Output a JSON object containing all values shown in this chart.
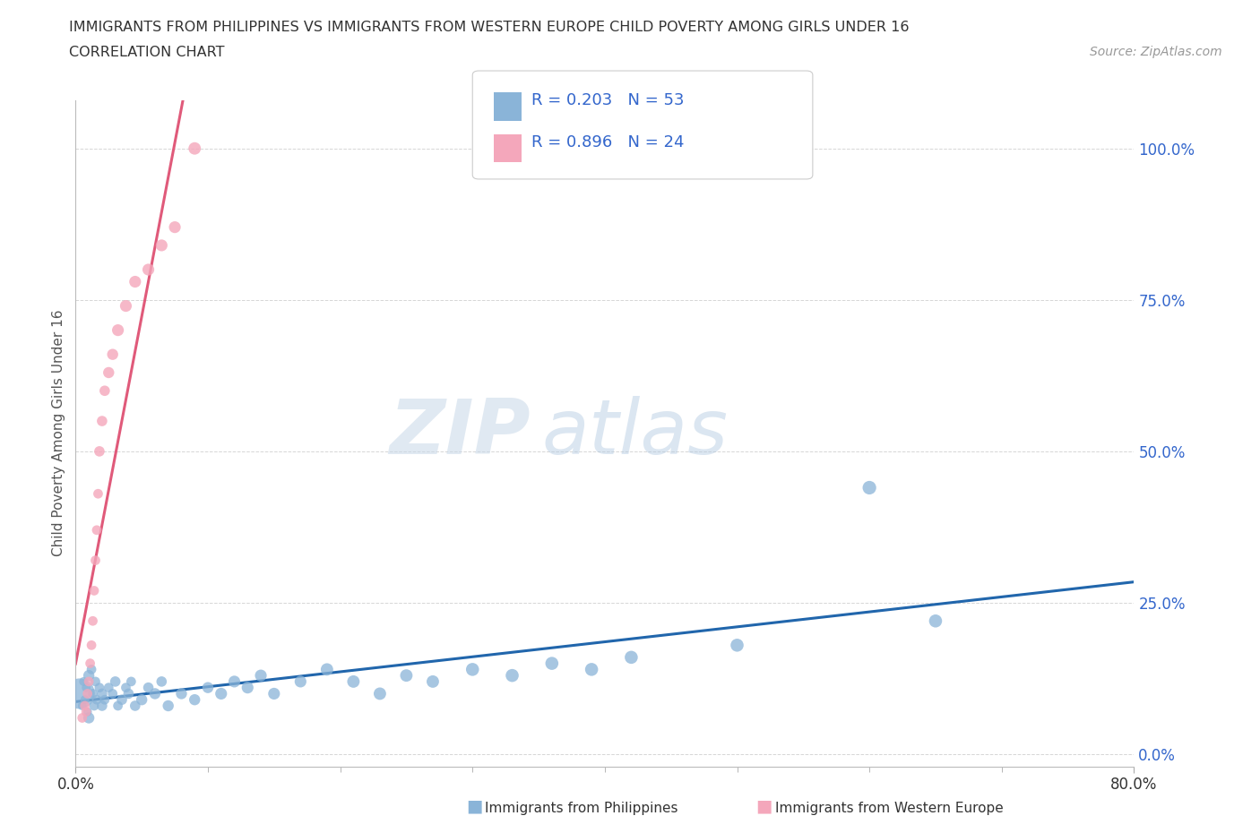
{
  "title_line1": "IMMIGRANTS FROM PHILIPPINES VS IMMIGRANTS FROM WESTERN EUROPE CHILD POVERTY AMONG GIRLS UNDER 16",
  "title_line2": "CORRELATION CHART",
  "source_text": "Source: ZipAtlas.com",
  "ylabel": "Child Poverty Among Girls Under 16",
  "xlim": [
    0.0,
    0.8
  ],
  "ylim": [
    -0.02,
    1.08
  ],
  "ytick_values": [
    0.0,
    0.25,
    0.5,
    0.75,
    1.0
  ],
  "ytick_labels": [
    "0.0%",
    "25.0%",
    "50.0%",
    "75.0%",
    "100.0%"
  ],
  "xtick_values": [
    0.0,
    0.8
  ],
  "xtick_labels": [
    "0.0%",
    "80.0%"
  ],
  "philippines_color": "#8ab4d8",
  "western_europe_color": "#f4a7bb",
  "phil_line_color": "#2166ac",
  "we_line_color": "#e05a7a",
  "legend_r1": "R = 0.203",
  "legend_n1": "N = 53",
  "legend_r2": "R = 0.896",
  "legend_n2": "N = 24",
  "legend_text_color": "#3366cc",
  "watermark_zip": "ZIP",
  "watermark_atlas": "atlas",
  "watermark_color": "#c8d8e8",
  "source_color": "#999999",
  "title_color": "#333333",
  "ylabel_color": "#555555",
  "ytick_color": "#3366cc",
  "xtick_color": "#333333",
  "grid_color": "#cccccc",
  "background_color": "#ffffff",
  "phil_x": [
    0.003,
    0.005,
    0.006,
    0.007,
    0.008,
    0.009,
    0.01,
    0.01,
    0.012,
    0.013,
    0.014,
    0.015,
    0.016,
    0.018,
    0.02,
    0.02,
    0.022,
    0.025,
    0.028,
    0.03,
    0.032,
    0.035,
    0.038,
    0.04,
    0.042,
    0.045,
    0.05,
    0.055,
    0.06,
    0.065,
    0.07,
    0.08,
    0.09,
    0.1,
    0.11,
    0.12,
    0.13,
    0.14,
    0.15,
    0.17,
    0.19,
    0.21,
    0.23,
    0.25,
    0.27,
    0.3,
    0.33,
    0.36,
    0.39,
    0.42,
    0.5,
    0.6,
    0.65
  ],
  "phil_y": [
    0.1,
    0.08,
    0.12,
    0.09,
    0.11,
    0.07,
    0.13,
    0.06,
    0.14,
    0.1,
    0.08,
    0.12,
    0.09,
    0.11,
    0.1,
    0.08,
    0.09,
    0.11,
    0.1,
    0.12,
    0.08,
    0.09,
    0.11,
    0.1,
    0.12,
    0.08,
    0.09,
    0.11,
    0.1,
    0.12,
    0.08,
    0.1,
    0.09,
    0.11,
    0.1,
    0.12,
    0.11,
    0.13,
    0.1,
    0.12,
    0.14,
    0.12,
    0.1,
    0.13,
    0.12,
    0.14,
    0.13,
    0.15,
    0.14,
    0.16,
    0.18,
    0.44,
    0.22
  ],
  "phil_sizes": [
    600,
    50,
    50,
    50,
    50,
    50,
    80,
    80,
    60,
    60,
    60,
    60,
    60,
    60,
    70,
    70,
    60,
    60,
    60,
    70,
    60,
    70,
    60,
    70,
    60,
    70,
    80,
    70,
    80,
    70,
    80,
    80,
    80,
    80,
    90,
    90,
    90,
    90,
    90,
    90,
    100,
    100,
    100,
    100,
    100,
    110,
    110,
    110,
    110,
    110,
    110,
    120,
    110
  ],
  "we_x": [
    0.005,
    0.007,
    0.008,
    0.009,
    0.01,
    0.011,
    0.012,
    0.013,
    0.014,
    0.015,
    0.016,
    0.017,
    0.018,
    0.02,
    0.022,
    0.025,
    0.028,
    0.032,
    0.038,
    0.045,
    0.055,
    0.065,
    0.075,
    0.09
  ],
  "we_y": [
    0.06,
    0.08,
    0.07,
    0.1,
    0.12,
    0.15,
    0.18,
    0.22,
    0.27,
    0.32,
    0.37,
    0.43,
    0.5,
    0.55,
    0.6,
    0.63,
    0.66,
    0.7,
    0.74,
    0.78,
    0.8,
    0.84,
    0.87,
    1.0
  ],
  "we_sizes": [
    60,
    60,
    60,
    60,
    60,
    60,
    60,
    60,
    60,
    60,
    60,
    60,
    70,
    70,
    70,
    80,
    80,
    90,
    90,
    90,
    90,
    90,
    90,
    100
  ]
}
